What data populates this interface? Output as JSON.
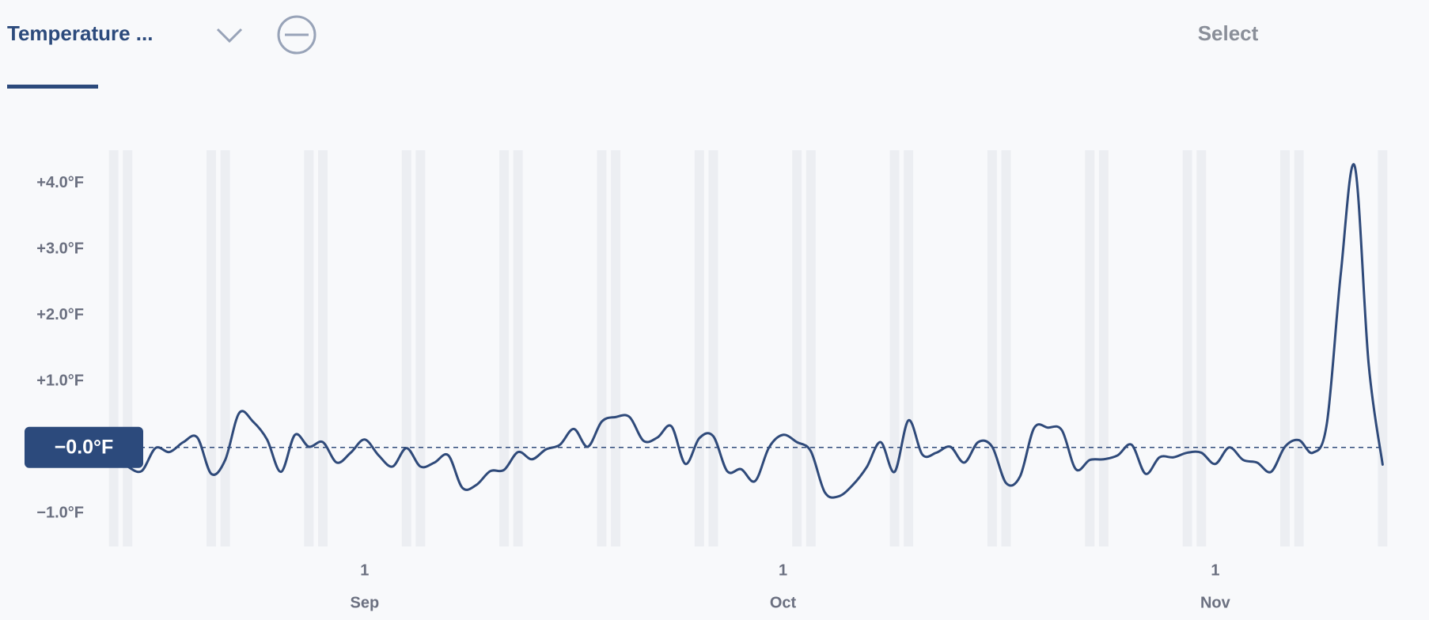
{
  "header": {
    "tab": "Temperature ...",
    "action": "Select"
  },
  "chart_data": {
    "type": "line",
    "x": [
      "08-15",
      "08-16",
      "08-17",
      "08-18",
      "08-19",
      "08-20",
      "08-21",
      "08-22",
      "08-23",
      "08-24",
      "08-25",
      "08-26",
      "08-27",
      "08-28",
      "08-29",
      "08-30",
      "08-31",
      "09-01",
      "09-02",
      "09-03",
      "09-04",
      "09-05",
      "09-06",
      "09-07",
      "09-08",
      "09-09",
      "09-10",
      "09-11",
      "09-12",
      "09-13",
      "09-14",
      "09-15",
      "09-16",
      "09-17",
      "09-18",
      "09-19",
      "09-20",
      "09-21",
      "09-22",
      "09-23",
      "09-24",
      "09-25",
      "09-26",
      "09-27",
      "09-28",
      "09-29",
      "09-30",
      "10-01",
      "10-02",
      "10-03",
      "10-04",
      "10-05",
      "10-06",
      "10-07",
      "10-08",
      "10-09",
      "10-10",
      "10-11",
      "10-12",
      "10-13",
      "10-14",
      "10-15",
      "10-16",
      "10-17",
      "10-18",
      "10-19",
      "10-20",
      "10-21",
      "10-22",
      "10-23",
      "10-24",
      "10-25",
      "10-26",
      "10-27",
      "10-28",
      "10-29",
      "10-30",
      "10-31",
      "11-01",
      "11-02",
      "11-03",
      "11-04",
      "11-05",
      "11-06",
      "11-07",
      "11-08",
      "11-09",
      "11-10",
      "11-11",
      "11-12",
      "11-13"
    ],
    "values": [
      -0.29,
      -0.36,
      -0.01,
      -0.07,
      0.08,
      0.15,
      -0.4,
      -0.19,
      0.52,
      0.39,
      0.12,
      -0.37,
      0.19,
      0.01,
      0.08,
      -0.23,
      -0.08,
      0.12,
      -0.12,
      -0.29,
      -0.01,
      -0.29,
      -0.23,
      -0.12,
      -0.61,
      -0.57,
      -0.36,
      -0.34,
      -0.07,
      -0.18,
      -0.03,
      0.04,
      0.28,
      0.01,
      0.39,
      0.46,
      0.46,
      0.1,
      0.15,
      0.32,
      -0.25,
      0.14,
      0.17,
      -0.36,
      -0.33,
      -0.51,
      0.0,
      0.19,
      0.08,
      -0.06,
      -0.68,
      -0.74,
      -0.57,
      -0.3,
      0.08,
      -0.37,
      0.41,
      -0.11,
      -0.08,
      0.01,
      -0.23,
      0.08,
      0.01,
      -0.54,
      -0.44,
      0.29,
      0.3,
      0.26,
      -0.33,
      -0.19,
      -0.18,
      -0.12,
      0.04,
      -0.4,
      -0.15,
      -0.15,
      -0.08,
      -0.08,
      -0.25,
      0.0,
      -0.19,
      -0.23,
      -0.37,
      0.01,
      0.11,
      -0.08,
      0.36,
      2.63,
      4.26,
      1.26,
      -0.26
    ],
    "color": "#2f4a7a",
    "xlim": [
      "08-13",
      "11-14"
    ],
    "xticks": [
      {
        "value": "09-01",
        "label": "1"
      },
      {
        "value": "10-01",
        "label": "1"
      },
      {
        "value": "11-01",
        "label": "1"
      }
    ],
    "x_group_labels": [
      {
        "value": "09-01",
        "label": "Sep"
      },
      {
        "value": "10-01",
        "label": "Oct"
      },
      {
        "value": "11-01",
        "label": "Nov"
      }
    ],
    "ylim": [
      -1.5,
      4.5
    ],
    "yticks": [
      {
        "value": -1,
        "label": "−1.0°F"
      },
      {
        "value": 1,
        "label": "+1.0°F"
      },
      {
        "value": 2,
        "label": "+2.0°F"
      },
      {
        "value": 3,
        "label": "+3.0°F"
      },
      {
        "value": 4,
        "label": "+4.0°F"
      }
    ],
    "reference": {
      "value": 0,
      "label": "−0.0°F"
    },
    "shaded_days": [
      "08-14",
      "08-15",
      "08-21",
      "08-22",
      "08-28",
      "08-29",
      "09-04",
      "09-05",
      "09-11",
      "09-12",
      "09-18",
      "09-19",
      "09-25",
      "09-26",
      "10-02",
      "10-03",
      "10-09",
      "10-10",
      "10-16",
      "10-17",
      "10-23",
      "10-24",
      "10-30",
      "10-31",
      "11-06",
      "11-07",
      "11-13"
    ]
  }
}
